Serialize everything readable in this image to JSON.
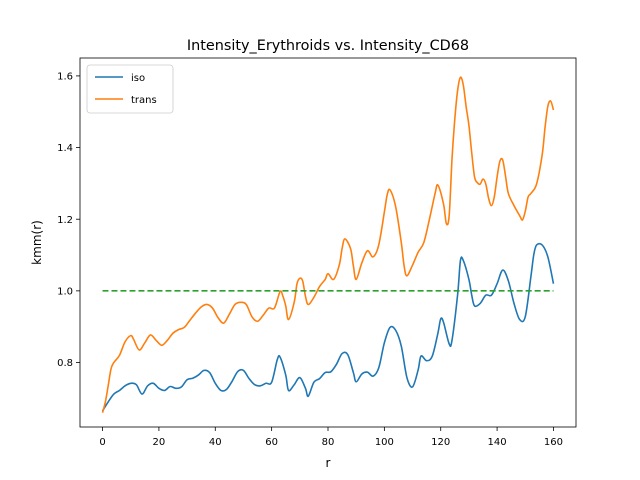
{
  "chart_data": {
    "type": "line",
    "title": "Intensity_Erythroids vs. Intensity_CD68",
    "xlabel": "r",
    "ylabel": "kmm(r)",
    "xlim": [
      -8,
      168
    ],
    "ylim": [
      0.62,
      1.65
    ],
    "xticks": [
      0,
      20,
      40,
      60,
      80,
      100,
      120,
      140,
      160
    ],
    "yticks": [
      0.8,
      1.0,
      1.2,
      1.4,
      1.6
    ],
    "xtick_labels": [
      "0",
      "20",
      "40",
      "60",
      "80",
      "100",
      "120",
      "140",
      "160"
    ],
    "ytick_labels": [
      "0.8",
      "1.0",
      "1.2",
      "1.4",
      "1.6"
    ],
    "grid": false,
    "legend": "top-left",
    "series": [
      {
        "name": "iso",
        "color": "#1f77b4",
        "style": "solid",
        "points": [
          [
            0,
            0.665
          ],
          [
            2,
            0.69
          ],
          [
            4,
            0.712
          ],
          [
            6,
            0.722
          ],
          [
            8,
            0.735
          ],
          [
            10,
            0.742
          ],
          [
            12,
            0.738
          ],
          [
            14,
            0.712
          ],
          [
            16,
            0.735
          ],
          [
            18,
            0.742
          ],
          [
            20,
            0.728
          ],
          [
            22,
            0.722
          ],
          [
            24,
            0.733
          ],
          [
            26,
            0.728
          ],
          [
            28,
            0.732
          ],
          [
            30,
            0.752
          ],
          [
            32,
            0.756
          ],
          [
            34,
            0.765
          ],
          [
            36,
            0.778
          ],
          [
            38,
            0.772
          ],
          [
            40,
            0.742
          ],
          [
            42,
            0.722
          ],
          [
            44,
            0.725
          ],
          [
            46,
            0.748
          ],
          [
            48,
            0.775
          ],
          [
            50,
            0.778
          ],
          [
            52,
            0.755
          ],
          [
            54,
            0.738
          ],
          [
            56,
            0.735
          ],
          [
            58,
            0.742
          ],
          [
            60,
            0.745
          ],
          [
            62,
            0.808
          ],
          [
            63,
            0.815
          ],
          [
            65,
            0.765
          ],
          [
            66,
            0.722
          ],
          [
            68,
            0.738
          ],
          [
            70,
            0.758
          ],
          [
            72,
            0.728
          ],
          [
            73,
            0.706
          ],
          [
            75,
            0.745
          ],
          [
            77,
            0.755
          ],
          [
            79,
            0.772
          ],
          [
            81,
            0.774
          ],
          [
            83,
            0.795
          ],
          [
            85,
            0.825
          ],
          [
            87,
            0.822
          ],
          [
            89,
            0.772
          ],
          [
            90,
            0.746
          ],
          [
            92,
            0.768
          ],
          [
            94,
            0.773
          ],
          [
            96,
            0.762
          ],
          [
            98,
            0.785
          ],
          [
            100,
            0.855
          ],
          [
            102,
            0.898
          ],
          [
            104,
            0.89
          ],
          [
            106,
            0.846
          ],
          [
            108,
            0.758
          ],
          [
            110,
            0.732
          ],
          [
            112,
            0.78
          ],
          [
            113,
            0.818
          ],
          [
            115,
            0.805
          ],
          [
            117,
            0.818
          ],
          [
            119,
            0.882
          ],
          [
            120,
            0.922
          ],
          [
            121,
            0.912
          ],
          [
            123,
            0.852
          ],
          [
            124,
            0.862
          ],
          [
            126,
            0.99
          ],
          [
            127,
            1.085
          ],
          [
            128,
            1.085
          ],
          [
            130,
            1.032
          ],
          [
            131,
            0.988
          ],
          [
            132,
            0.958
          ],
          [
            134,
            0.965
          ],
          [
            136,
            0.988
          ],
          [
            138,
            0.988
          ],
          [
            140,
            1.02
          ],
          [
            142,
            1.058
          ],
          [
            144,
            1.028
          ],
          [
            146,
            0.965
          ],
          [
            148,
            0.92
          ],
          [
            150,
            0.928
          ],
          [
            152,
            1.04
          ],
          [
            153,
            1.1
          ],
          [
            154,
            1.128
          ],
          [
            156,
            1.128
          ],
          [
            158,
            1.095
          ],
          [
            160,
            1.02
          ]
        ]
      },
      {
        "name": "trans",
        "color": "#ff7f0e",
        "style": "solid",
        "points": [
          [
            0,
            0.66
          ],
          [
            1,
            0.69
          ],
          [
            2,
            0.735
          ],
          [
            3,
            0.782
          ],
          [
            4,
            0.8
          ],
          [
            6,
            0.82
          ],
          [
            8,
            0.858
          ],
          [
            10,
            0.875
          ],
          [
            11,
            0.865
          ],
          [
            13,
            0.835
          ],
          [
            15,
            0.855
          ],
          [
            17,
            0.877
          ],
          [
            19,
            0.862
          ],
          [
            21,
            0.848
          ],
          [
            23,
            0.862
          ],
          [
            25,
            0.882
          ],
          [
            27,
            0.892
          ],
          [
            29,
            0.898
          ],
          [
            31,
            0.918
          ],
          [
            33,
            0.938
          ],
          [
            35,
            0.955
          ],
          [
            37,
            0.962
          ],
          [
            39,
            0.952
          ],
          [
            41,
            0.925
          ],
          [
            43,
            0.91
          ],
          [
            45,
            0.935
          ],
          [
            47,
            0.962
          ],
          [
            49,
            0.968
          ],
          [
            51,
            0.962
          ],
          [
            53,
            0.928
          ],
          [
            55,
            0.915
          ],
          [
            57,
            0.932
          ],
          [
            59,
            0.952
          ],
          [
            61,
            0.952
          ],
          [
            63,
            0.998
          ],
          [
            64,
            0.985
          ],
          [
            65,
            0.958
          ],
          [
            66,
            0.92
          ],
          [
            68,
            0.968
          ],
          [
            69,
            1.02
          ],
          [
            70,
            1.035
          ],
          [
            71,
            1.028
          ],
          [
            72,
            0.985
          ],
          [
            73,
            0.962
          ],
          [
            75,
            0.982
          ],
          [
            77,
            1.012
          ],
          [
            79,
            1.032
          ],
          [
            80,
            1.048
          ],
          [
            82,
            1.032
          ],
          [
            84,
            1.072
          ],
          [
            85,
            1.118
          ],
          [
            86,
            1.145
          ],
          [
            88,
            1.118
          ],
          [
            89,
            1.07
          ],
          [
            90,
            1.032
          ],
          [
            92,
            1.078
          ],
          [
            94,
            1.112
          ],
          [
            96,
            1.095
          ],
          [
            98,
            1.128
          ],
          [
            100,
            1.22
          ],
          [
            101,
            1.268
          ],
          [
            102,
            1.282
          ],
          [
            104,
            1.235
          ],
          [
            106,
            1.135
          ],
          [
            107,
            1.07
          ],
          [
            108,
            1.042
          ],
          [
            110,
            1.072
          ],
          [
            112,
            1.108
          ],
          [
            114,
            1.135
          ],
          [
            116,
            1.2
          ],
          [
            118,
            1.272
          ],
          [
            119,
            1.295
          ],
          [
            121,
            1.242
          ],
          [
            122,
            1.188
          ],
          [
            123,
            1.21
          ],
          [
            124,
            1.368
          ],
          [
            125,
            1.48
          ],
          [
            126,
            1.56
          ],
          [
            127,
            1.596
          ],
          [
            128,
            1.575
          ],
          [
            129,
            1.515
          ],
          [
            130,
            1.462
          ],
          [
            131,
            1.385
          ],
          [
            132,
            1.318
          ],
          [
            133,
            1.302
          ],
          [
            134,
            1.298
          ],
          [
            135,
            1.312
          ],
          [
            136,
            1.298
          ],
          [
            137,
            1.258
          ],
          [
            138,
            1.238
          ],
          [
            139,
            1.262
          ],
          [
            140,
            1.318
          ],
          [
            141,
            1.362
          ],
          [
            142,
            1.365
          ],
          [
            143,
            1.32
          ],
          [
            144,
            1.272
          ],
          [
            146,
            1.238
          ],
          [
            148,
            1.21
          ],
          [
            149,
            1.198
          ],
          [
            150,
            1.222
          ],
          [
            151,
            1.262
          ],
          [
            152,
            1.272
          ],
          [
            154,
            1.298
          ],
          [
            156,
            1.38
          ],
          [
            157,
            1.455
          ],
          [
            158,
            1.515
          ],
          [
            159,
            1.53
          ],
          [
            160,
            1.505
          ]
        ]
      },
      {
        "name": "",
        "color": "#2ca02c",
        "style": "dashed",
        "points": [
          [
            0,
            1.0
          ],
          [
            160,
            1.0
          ]
        ]
      }
    ]
  }
}
